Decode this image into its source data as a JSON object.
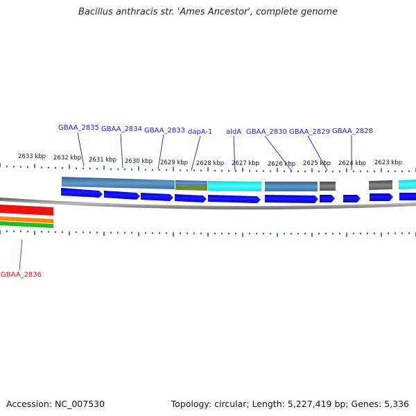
{
  "title": "Bacillus anthracis str. 'Ames Ancestor', complete genome",
  "footer": {
    "accession": "Accession: NC_007530",
    "summary": "Topology: circular; Length: 5,227,419 bp; Genes: 5,336"
  },
  "tick_labels": [
    "2633 kbp",
    "2632 kbp",
    "2631 kbp",
    "2630 kbp",
    "2629 kbp",
    "2628 kbp",
    "2627 kbp",
    "2626 kbp",
    "2625 kbp",
    "2624 kbp",
    "2623 kbp"
  ],
  "gene_labels": {
    "top": [
      "GBAA_2835",
      "GBAA_2834",
      "GBAA_2833",
      "dapA-1",
      "aldA",
      "GBAA_2830",
      "GBAA_2829",
      "GBAA_2828"
    ],
    "bottom": [
      "GBAA_2836"
    ]
  },
  "colors": {
    "cds_arrow": "#0000ee",
    "blue_feature": "#4a86b8",
    "cyan_feature": "#22eeee",
    "gray_feature": "#666666",
    "olive_feature": "#6b8e23",
    "tick_green": "#0a7d0a",
    "label_blue": "#1a1acc",
    "label_red": "#dd1111",
    "red_feature": "#ee1111",
    "orange_feature": "#ff8800",
    "green_feature": "#22bb22"
  }
}
